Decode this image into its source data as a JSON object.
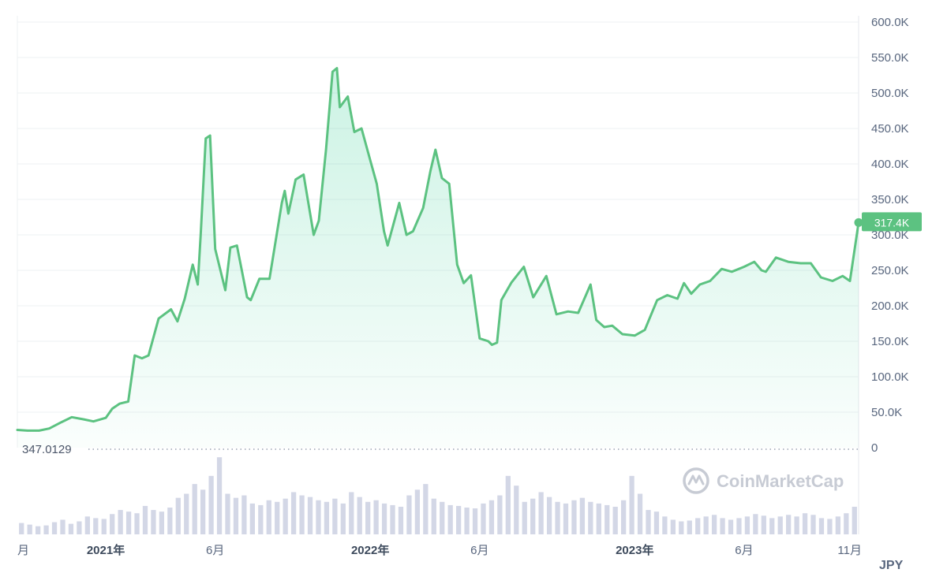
{
  "chart_data": {
    "type": "area",
    "currency": "JPY",
    "baseline_label": "347.0129",
    "last_price_label": "317.4K",
    "watermark": "CoinMarketCap",
    "y_ticks": [
      "0",
      "50.0K",
      "100.0K",
      "150.0K",
      "200.0K",
      "250.0K",
      "300.0K",
      "350.0K",
      "400.0K",
      "450.0K",
      "500.0K",
      "550.0K",
      "600.0K"
    ],
    "y_tick_values": [
      0,
      50000,
      100000,
      150000,
      200000,
      250000,
      300000,
      350000,
      400000,
      450000,
      500000,
      550000,
      600000
    ],
    "ylim": [
      0,
      600000
    ],
    "xlim": [
      "2020-09-01",
      "2023-11-06"
    ],
    "x_ticks": [
      {
        "label": "月",
        "date": "2020-09-01",
        "bold": false
      },
      {
        "label": "2021年",
        "date": "2021-01-01",
        "bold": true
      },
      {
        "label": "6月",
        "date": "2021-06-01",
        "bold": false
      },
      {
        "label": "2022年",
        "date": "2022-01-01",
        "bold": true
      },
      {
        "label": "6月",
        "date": "2022-06-01",
        "bold": false
      },
      {
        "label": "2023年",
        "date": "2023-01-01",
        "bold": true
      },
      {
        "label": "6月",
        "date": "2023-06-01",
        "bold": false
      },
      {
        "label": "11月",
        "date": "2023-11-01",
        "bold": false
      }
    ],
    "colors": {
      "line": "#5cc281",
      "fill": "#16c784",
      "volume": "#d3d7e6",
      "badge": "#5cc281"
    },
    "series": [
      {
        "x": [
          "2020-09-01",
          "2020-09-15",
          "2020-10-01",
          "2020-10-15",
          "2020-11-01",
          "2020-11-15",
          "2020-12-01",
          "2020-12-15",
          "2021-01-01",
          "2021-01-10",
          "2021-01-20",
          "2021-02-01",
          "2021-02-10",
          "2021-02-20",
          "2021-03-01",
          "2021-03-15",
          "2021-04-01",
          "2021-04-10",
          "2021-04-20",
          "2021-05-01",
          "2021-05-08",
          "2021-05-12",
          "2021-05-19",
          "2021-05-25",
          "2021-06-01",
          "2021-06-15",
          "2021-06-22",
          "2021-07-01",
          "2021-07-15",
          "2021-07-20",
          "2021-08-01",
          "2021-08-15",
          "2021-09-01",
          "2021-09-05",
          "2021-09-10",
          "2021-09-20",
          "2021-10-01",
          "2021-10-15",
          "2021-10-22",
          "2021-11-01",
          "2021-11-10",
          "2021-11-16",
          "2021-11-20",
          "2021-12-01",
          "2021-12-10",
          "2021-12-20",
          "2022-01-01",
          "2022-01-10",
          "2022-01-20",
          "2022-01-25",
          "2022-02-10",
          "2022-02-20",
          "2022-03-01",
          "2022-03-15",
          "2022-03-25",
          "2022-04-01",
          "2022-04-10",
          "2022-04-20",
          "2022-05-01",
          "2022-05-10",
          "2022-05-20",
          "2022-06-01",
          "2022-06-13",
          "2022-06-18",
          "2022-06-25",
          "2022-07-01",
          "2022-07-15",
          "2022-08-01",
          "2022-08-14",
          "2022-09-01",
          "2022-09-15",
          "2022-10-01",
          "2022-10-15",
          "2022-11-01",
          "2022-11-09",
          "2022-11-20",
          "2022-12-01",
          "2022-12-15",
          "2023-01-01",
          "2023-01-15",
          "2023-02-01",
          "2023-02-15",
          "2023-03-01",
          "2023-03-10",
          "2023-03-20",
          "2023-04-01",
          "2023-04-15",
          "2023-05-01",
          "2023-05-15",
          "2023-06-01",
          "2023-06-15",
          "2023-06-25",
          "2023-07-01",
          "2023-07-15",
          "2023-08-01",
          "2023-08-18",
          "2023-09-01",
          "2023-09-15",
          "2023-10-01",
          "2023-10-15",
          "2023-10-25",
          "2023-11-06"
        ],
        "values": [
          25000,
          24000,
          24000,
          27000,
          36000,
          43000,
          40000,
          37000,
          42000,
          55000,
          62000,
          65000,
          130000,
          126000,
          130000,
          182000,
          195000,
          178000,
          210000,
          258000,
          230000,
          300000,
          436000,
          440000,
          280000,
          222000,
          282000,
          285000,
          212000,
          208000,
          238000,
          238000,
          345000,
          362000,
          330000,
          378000,
          385000,
          300000,
          320000,
          420000,
          530000,
          535000,
          480000,
          495000,
          445000,
          450000,
          405000,
          372000,
          305000,
          285000,
          345000,
          300000,
          305000,
          338000,
          390000,
          420000,
          380000,
          372000,
          258000,
          232000,
          243000,
          154000,
          150000,
          145000,
          148000,
          208000,
          233000,
          255000,
          212000,
          242000,
          188000,
          192000,
          190000,
          230000,
          180000,
          170000,
          172000,
          160000,
          158000,
          166000,
          208000,
          215000,
          210000,
          232000,
          217000,
          230000,
          235000,
          252000,
          248000,
          255000,
          262000,
          250000,
          248000,
          268000,
          262000,
          260000,
          260000,
          240000,
          235000,
          242000,
          235000,
          317400
        ]
      }
    ],
    "volume_relative": [
      0.14,
      0.12,
      0.1,
      0.11,
      0.15,
      0.18,
      0.13,
      0.16,
      0.22,
      0.2,
      0.19,
      0.25,
      0.3,
      0.28,
      0.26,
      0.35,
      0.3,
      0.28,
      0.33,
      0.45,
      0.5,
      0.62,
      0.55,
      0.72,
      0.95,
      0.5,
      0.45,
      0.48,
      0.38,
      0.36,
      0.42,
      0.4,
      0.44,
      0.52,
      0.48,
      0.46,
      0.42,
      0.4,
      0.44,
      0.38,
      0.52,
      0.46,
      0.4,
      0.42,
      0.38,
      0.36,
      0.34,
      0.48,
      0.55,
      0.62,
      0.44,
      0.4,
      0.36,
      0.35,
      0.33,
      0.32,
      0.38,
      0.42,
      0.48,
      0.72,
      0.6,
      0.4,
      0.44,
      0.52,
      0.46,
      0.4,
      0.38,
      0.42,
      0.45,
      0.4,
      0.38,
      0.36,
      0.34,
      0.42,
      0.72,
      0.5,
      0.3,
      0.28,
      0.22,
      0.18,
      0.16,
      0.17,
      0.2,
      0.22,
      0.24,
      0.2,
      0.18,
      0.2,
      0.22,
      0.25,
      0.23,
      0.2,
      0.22,
      0.24,
      0.22,
      0.26,
      0.24,
      0.2,
      0.19,
      0.22,
      0.26,
      0.34
    ]
  }
}
